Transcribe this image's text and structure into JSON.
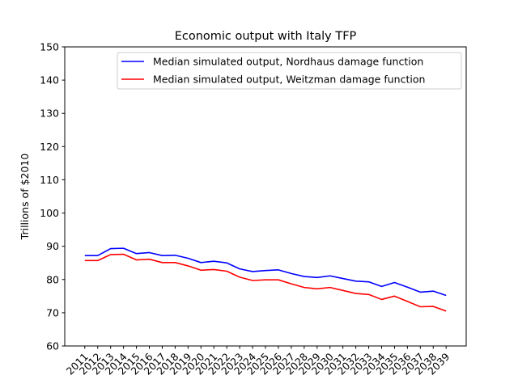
{
  "chart_data": {
    "type": "line",
    "title": "Economic output with Italy TFP",
    "xlabel": "",
    "ylabel": "Trillions of $2010",
    "ylim": [
      60,
      150
    ],
    "yticks": [
      60,
      70,
      80,
      90,
      100,
      110,
      120,
      130,
      140,
      150
    ],
    "x": [
      "2011",
      "2012",
      "2013",
      "2014",
      "2015",
      "2016",
      "2017",
      "2018",
      "2019",
      "2020",
      "2021",
      "2022",
      "2023",
      "2024",
      "2025",
      "2026",
      "2027",
      "2028",
      "2029",
      "2030",
      "2031",
      "2032",
      "2033",
      "2034",
      "2035",
      "2036",
      "2037",
      "2038",
      "2039"
    ],
    "grid": false,
    "legend_position": "upper-right",
    "series": [
      {
        "name": "Median simulated output, Nordhaus damage function",
        "color": "#0000ff",
        "values": [
          87.2,
          87.2,
          89.3,
          89.4,
          87.8,
          88.1,
          87.2,
          87.3,
          86.4,
          85.1,
          85.5,
          85.0,
          83.2,
          82.4,
          82.7,
          82.9,
          81.8,
          80.9,
          80.6,
          81.1,
          80.3,
          79.5,
          79.3,
          77.9,
          79.1,
          77.7,
          76.2,
          76.5,
          75.2
        ]
      },
      {
        "name": "Median simulated output, Weitzman damage function",
        "color": "#ff0000",
        "values": [
          85.7,
          85.7,
          87.5,
          87.6,
          85.9,
          86.1,
          85.1,
          85.1,
          84.1,
          82.8,
          83.0,
          82.5,
          80.7,
          79.7,
          79.9,
          79.9,
          78.7,
          77.6,
          77.2,
          77.6,
          76.7,
          75.8,
          75.5,
          74.0,
          75.0,
          73.4,
          71.8,
          71.9,
          70.5
        ]
      }
    ]
  }
}
